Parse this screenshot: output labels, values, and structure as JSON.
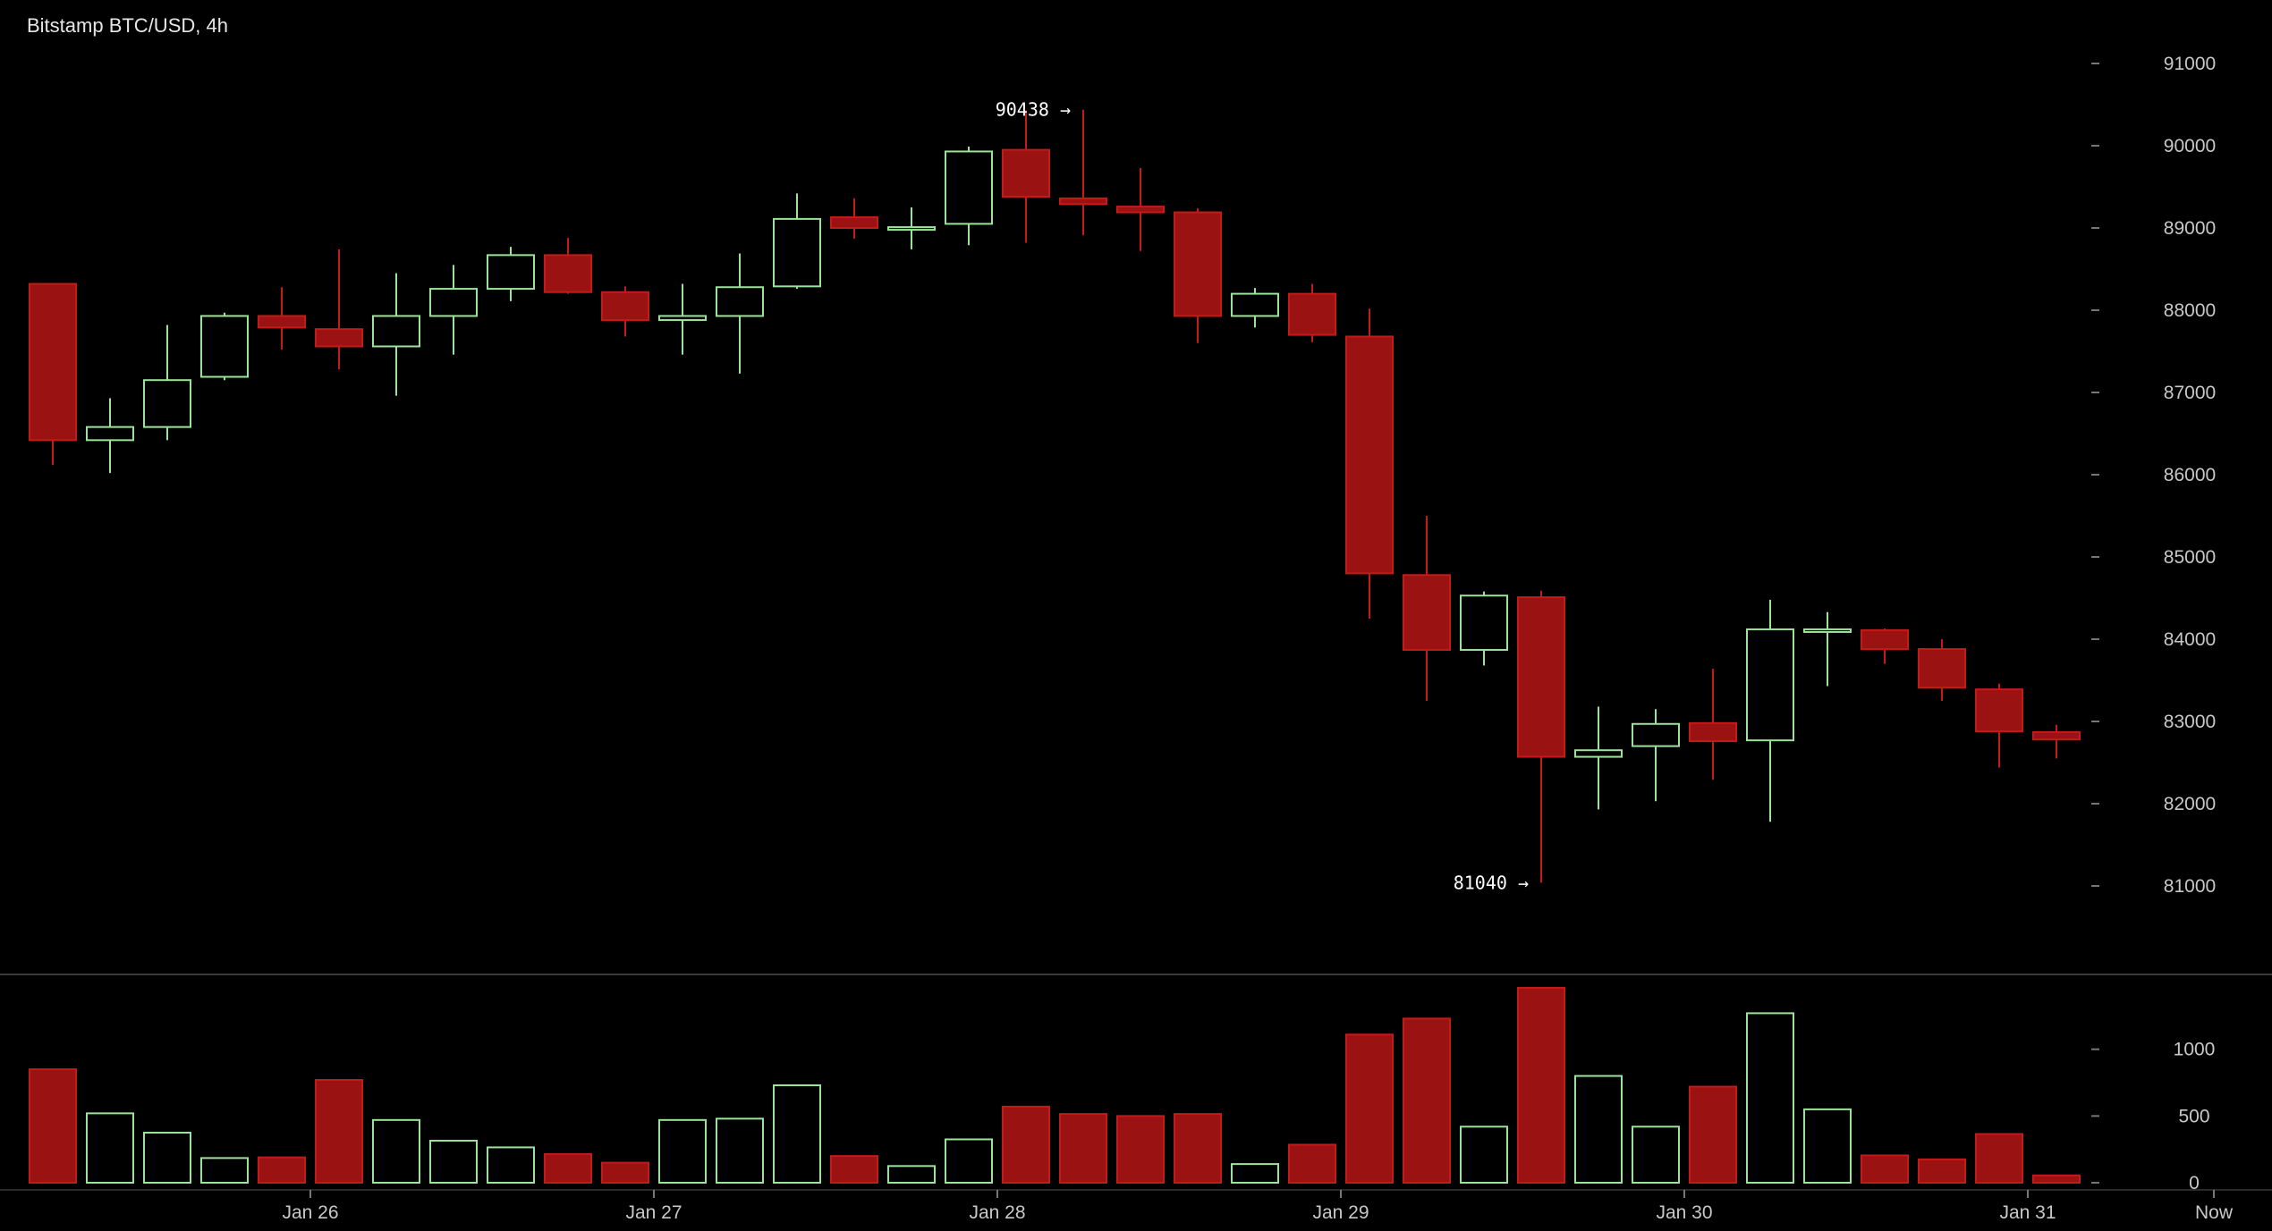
{
  "chart_data": {
    "type": "candlestick",
    "title": "Bitstamp BTC/USD, 4h",
    "price_axis": {
      "ticks": [
        91000,
        90000,
        89000,
        88000,
        87000,
        86000,
        85000,
        84000,
        83000,
        82000,
        81000
      ],
      "tick_labels": [
        "91000",
        "90000",
        "89000",
        "88000",
        "87000",
        "86000",
        "85000",
        "84000",
        "83000",
        "82000",
        "81000"
      ],
      "range": [
        80000,
        91600
      ]
    },
    "volume_axis": {
      "ticks": [
        0,
        500,
        1000
      ],
      "tick_labels": [
        "0",
        "500",
        "1000"
      ],
      "range": [
        0,
        1500
      ]
    },
    "x_axis": {
      "labels": [
        "Jan 26",
        "Jan 27",
        "Jan 28",
        "Jan 29",
        "Jan 30",
        "Jan 31",
        "Now"
      ],
      "label_candle_index": [
        4.5,
        10.5,
        16.5,
        22.5,
        28.5,
        34.5,
        37.75
      ]
    },
    "candles": [
      {
        "o": 88320,
        "h": 88320,
        "l": 86120,
        "c": 86420,
        "v": 850
      },
      {
        "o": 86420,
        "h": 86930,
        "l": 86020,
        "c": 86580,
        "v": 520
      },
      {
        "o": 86580,
        "h": 87820,
        "l": 86420,
        "c": 87150,
        "v": 375
      },
      {
        "o": 87190,
        "h": 87970,
        "l": 87150,
        "c": 87930,
        "v": 185
      },
      {
        "o": 87930,
        "h": 88280,
        "l": 87520,
        "c": 87790,
        "v": 190
      },
      {
        "o": 87770,
        "h": 88740,
        "l": 87280,
        "c": 87560,
        "v": 770
      },
      {
        "o": 87560,
        "h": 88450,
        "l": 86960,
        "c": 87930,
        "v": 470
      },
      {
        "o": 87930,
        "h": 88550,
        "l": 87460,
        "c": 88260,
        "v": 315
      },
      {
        "o": 88260,
        "h": 88770,
        "l": 88110,
        "c": 88670,
        "v": 265
      },
      {
        "o": 88670,
        "h": 88880,
        "l": 88200,
        "c": 88220,
        "v": 215
      },
      {
        "o": 88220,
        "h": 88290,
        "l": 87680,
        "c": 87880,
        "v": 150
      },
      {
        "o": 87880,
        "h": 88320,
        "l": 87460,
        "c": 87930,
        "v": 470
      },
      {
        "o": 87930,
        "h": 88690,
        "l": 87230,
        "c": 88280,
        "v": 480
      },
      {
        "o": 88290,
        "h": 89420,
        "l": 88260,
        "c": 89110,
        "v": 730
      },
      {
        "o": 89130,
        "h": 89360,
        "l": 88870,
        "c": 89000,
        "v": 200
      },
      {
        "o": 89010,
        "h": 89250,
        "l": 88740,
        "c": 89010,
        "v": 125
      },
      {
        "o": 89050,
        "h": 89990,
        "l": 88790,
        "c": 89930,
        "v": 325
      },
      {
        "o": 89950,
        "h": 90430,
        "l": 88820,
        "c": 89380,
        "v": 570
      },
      {
        "o": 89360,
        "h": 90438,
        "l": 88910,
        "c": 89290,
        "v": 515
      },
      {
        "o": 89260,
        "h": 89730,
        "l": 88720,
        "c": 89190,
        "v": 500
      },
      {
        "o": 89190,
        "h": 89240,
        "l": 87600,
        "c": 87930,
        "v": 515
      },
      {
        "o": 87930,
        "h": 88270,
        "l": 87790,
        "c": 88200,
        "v": 140
      },
      {
        "o": 88200,
        "h": 88320,
        "l": 87610,
        "c": 87700,
        "v": 285
      },
      {
        "o": 87680,
        "h": 88020,
        "l": 84250,
        "c": 84800,
        "v": 1110
      },
      {
        "o": 84780,
        "h": 85500,
        "l": 83250,
        "c": 83870,
        "v": 1230
      },
      {
        "o": 83870,
        "h": 84580,
        "l": 83680,
        "c": 84530,
        "v": 420
      },
      {
        "o": 84510,
        "h": 84590,
        "l": 81040,
        "c": 82570,
        "v": 1460
      },
      {
        "o": 82570,
        "h": 83180,
        "l": 81930,
        "c": 82650,
        "v": 800
      },
      {
        "o": 82700,
        "h": 83150,
        "l": 82030,
        "c": 82970,
        "v": 420
      },
      {
        "o": 82980,
        "h": 83640,
        "l": 82290,
        "c": 82760,
        "v": 720
      },
      {
        "o": 82770,
        "h": 84480,
        "l": 81780,
        "c": 84120,
        "v": 1270
      },
      {
        "o": 84120,
        "h": 84330,
        "l": 83430,
        "c": 84120,
        "v": 550
      },
      {
        "o": 84110,
        "h": 84130,
        "l": 83700,
        "c": 83880,
        "v": 205
      },
      {
        "o": 83880,
        "h": 84000,
        "l": 83250,
        "c": 83410,
        "v": 175
      },
      {
        "o": 83390,
        "h": 83460,
        "l": 82440,
        "c": 82880,
        "v": 365
      },
      {
        "o": 82870,
        "h": 82960,
        "l": 82550,
        "c": 82780,
        "v": 55
      }
    ],
    "colors": {
      "up": "#000000",
      "up_border": "#9be39b",
      "down": "#9b1212",
      "down_border": "#c31a1a",
      "background": "#000000",
      "text": "#c8c8c8",
      "separator": "#3a3a3a"
    },
    "annotations": [
      {
        "text": "90438 →",
        "price": 90438,
        "candle_index": 18
      },
      {
        "text": "81040 →",
        "price": 81040,
        "candle_index": 26
      }
    ],
    "grid": false
  }
}
